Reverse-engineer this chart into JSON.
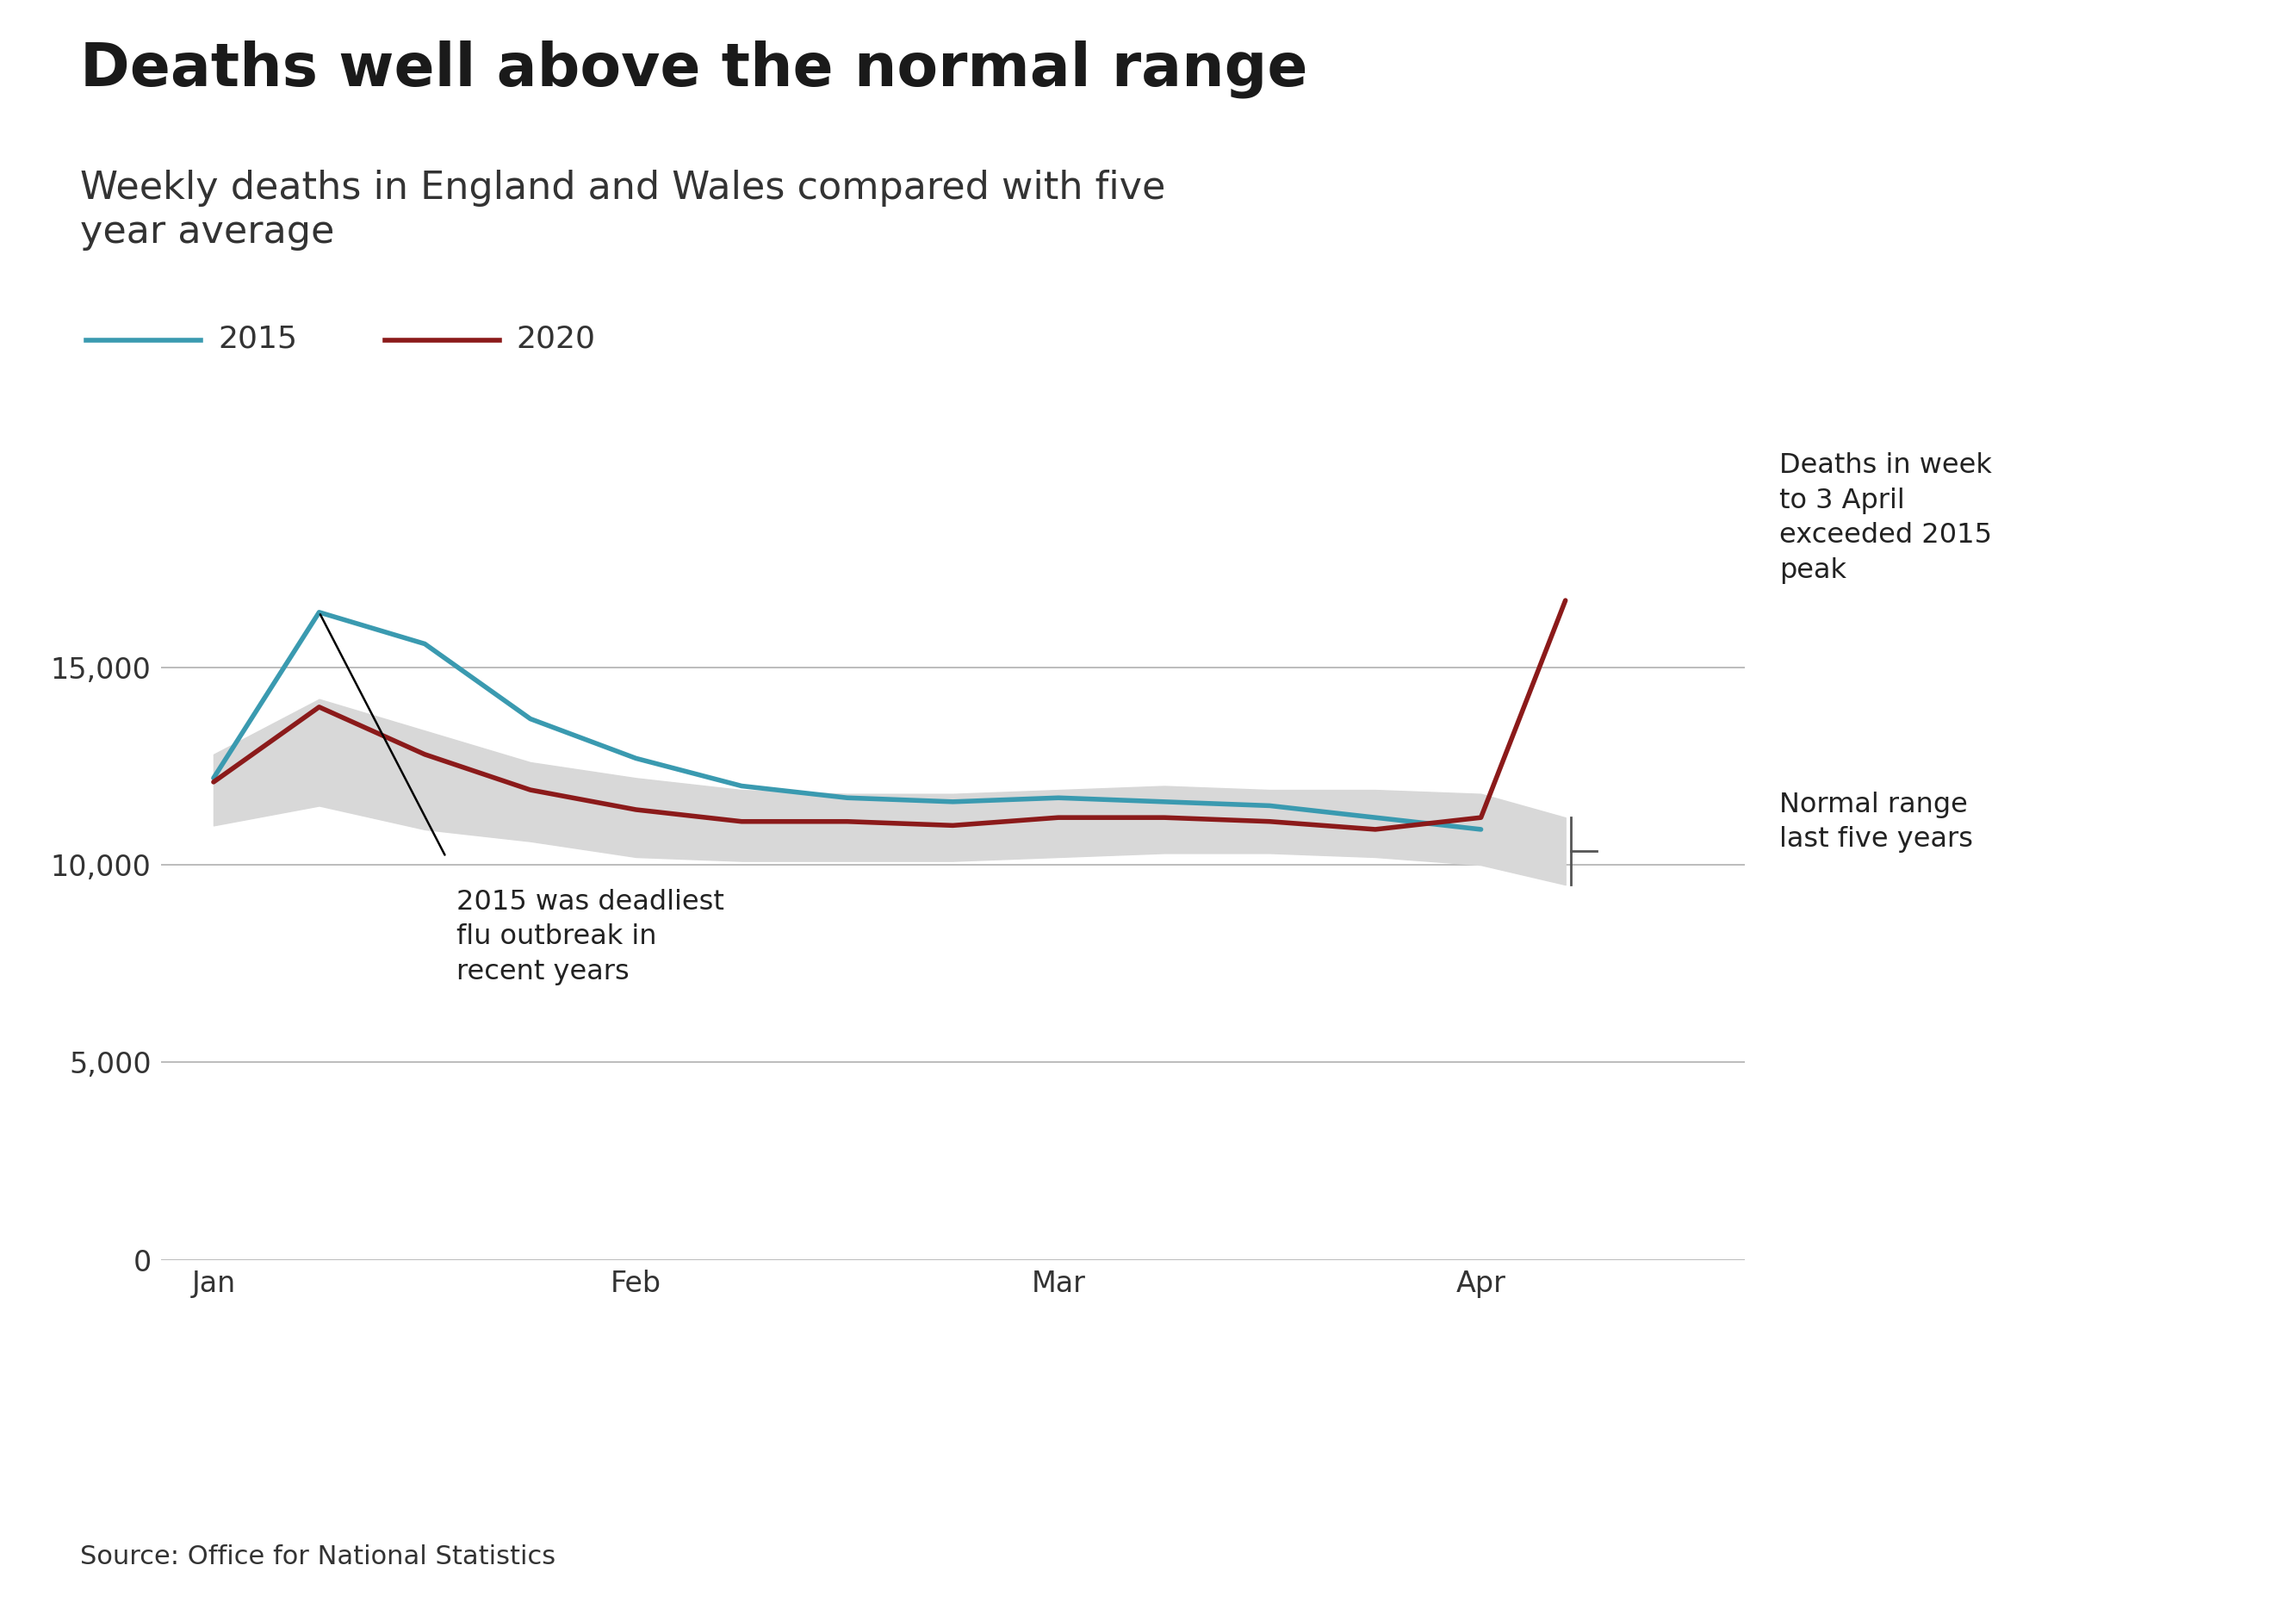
{
  "title": "Deaths well above the normal range",
  "subtitle": "Weekly deaths in England and Wales compared with five\nyear average",
  "source": "Source: Office for National Statistics",
  "color_2015": "#3a9ab0",
  "color_2020": "#8b1a1a",
  "background_color": "#ffffff",
  "x_labels": [
    "Jan",
    "Feb",
    "Mar",
    "Apr"
  ],
  "ylim": [
    0,
    18000
  ],
  "yticks": [
    0,
    5000,
    10000,
    15000
  ],
  "ytick_labels": [
    "0",
    "5,000",
    "10,000",
    "15,000"
  ],
  "x_2015": [
    1,
    2,
    3,
    4,
    5,
    6,
    7,
    8,
    9,
    10,
    11,
    12,
    13
  ],
  "y_2015": [
    12200,
    16400,
    15600,
    13700,
    12700,
    12000,
    11700,
    11600,
    11700,
    11600,
    11500,
    11200,
    10900
  ],
  "x_2020": [
    1,
    2,
    3,
    4,
    5,
    6,
    7,
    8,
    9,
    10,
    11,
    12,
    13,
    13.8
  ],
  "y_2020": [
    12100,
    14000,
    12800,
    11900,
    11400,
    11100,
    11100,
    11000,
    11200,
    11200,
    11100,
    10900,
    11200,
    16700
  ],
  "x_band": [
    1,
    2,
    3,
    4,
    5,
    6,
    7,
    8,
    9,
    10,
    11,
    12,
    13,
    13.8
  ],
  "y_band_upper": [
    12800,
    14200,
    13400,
    12600,
    12200,
    11900,
    11800,
    11800,
    11900,
    12000,
    11900,
    11900,
    11800,
    11200
  ],
  "y_band_lower": [
    11000,
    11500,
    10900,
    10600,
    10200,
    10100,
    10100,
    10100,
    10200,
    10300,
    10300,
    10200,
    10000,
    9500
  ],
  "x_jan": 1,
  "x_feb": 5,
  "x_mar": 9,
  "x_apr": 13,
  "xlim": [
    0.5,
    15.5
  ],
  "annotation_2015_text": "2015 was deadliest\nflu outbreak in\nrecent years",
  "annotation_2020_text": "Deaths in week\nto 3 April\nexceeded 2015\npeak",
  "annotation_normal_text": "Normal range\nlast five years"
}
